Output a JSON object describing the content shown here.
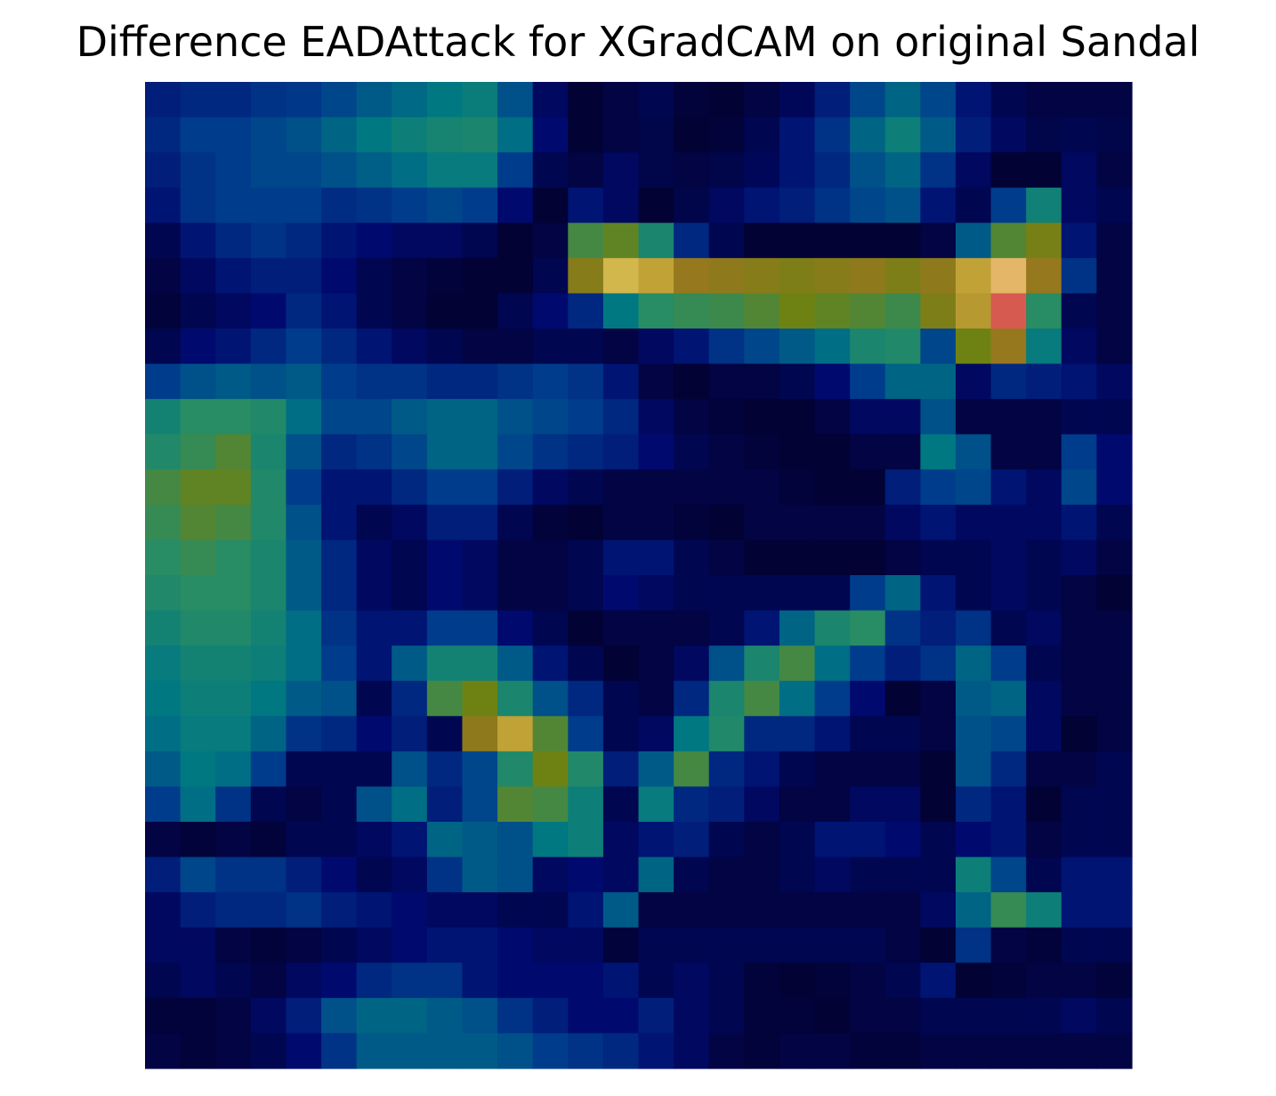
{
  "chart_data": {
    "type": "heatmap",
    "title": "Difference EADAttack for XGradCAM on original Sandal",
    "xlabel": "",
    "ylabel": "",
    "axes_visible": false,
    "grid": false,
    "colormap": "jet-like (dark blue low, cyan/green mid, yellow/orange/red high), overlaid on the original image",
    "rows": 28,
    "cols": 28,
    "values": [
      [
        0.12,
        0.14,
        0.14,
        0.16,
        0.17,
        0.2,
        0.24,
        0.27,
        0.3,
        0.33,
        0.22,
        0.06,
        0.0,
        0.02,
        0.04,
        0.01,
        0.0,
        0.02,
        0.05,
        0.12,
        0.2,
        0.26,
        0.2,
        0.1,
        0.04,
        0.02,
        0.02,
        0.02
      ],
      [
        0.14,
        0.18,
        0.18,
        0.2,
        0.22,
        0.26,
        0.3,
        0.34,
        0.37,
        0.38,
        0.28,
        0.08,
        0.0,
        0.02,
        0.03,
        0.0,
        0.01,
        0.04,
        0.1,
        0.16,
        0.26,
        0.34,
        0.24,
        0.12,
        0.06,
        0.03,
        0.04,
        0.03
      ],
      [
        0.12,
        0.16,
        0.18,
        0.2,
        0.2,
        0.22,
        0.25,
        0.28,
        0.32,
        0.32,
        0.18,
        0.04,
        0.02,
        0.06,
        0.03,
        0.02,
        0.03,
        0.05,
        0.1,
        0.14,
        0.22,
        0.26,
        0.16,
        0.06,
        0.0,
        0.0,
        0.06,
        0.02
      ],
      [
        0.1,
        0.16,
        0.18,
        0.18,
        0.18,
        0.15,
        0.16,
        0.18,
        0.2,
        0.18,
        0.08,
        0.0,
        0.1,
        0.06,
        0.0,
        0.03,
        0.06,
        0.1,
        0.12,
        0.16,
        0.2,
        0.22,
        0.1,
        0.04,
        0.18,
        0.35,
        0.06,
        0.04
      ],
      [
        0.04,
        0.1,
        0.14,
        0.16,
        0.14,
        0.1,
        0.08,
        0.06,
        0.06,
        0.04,
        0.0,
        0.02,
        0.46,
        0.5,
        0.38,
        0.14,
        0.04,
        0.0,
        0.0,
        0.0,
        0.0,
        0.0,
        0.02,
        0.24,
        0.48,
        0.54,
        0.1,
        0.02
      ],
      [
        0.02,
        0.06,
        0.1,
        0.12,
        0.12,
        0.08,
        0.04,
        0.02,
        0.01,
        0.0,
        0.0,
        0.04,
        0.58,
        0.78,
        0.72,
        0.62,
        0.6,
        0.58,
        0.56,
        0.58,
        0.6,
        0.56,
        0.6,
        0.72,
        0.88,
        0.62,
        0.16,
        0.02
      ],
      [
        0.01,
        0.04,
        0.06,
        0.08,
        0.14,
        0.1,
        0.04,
        0.02,
        0.0,
        0.0,
        0.04,
        0.08,
        0.14,
        0.3,
        0.42,
        0.44,
        0.45,
        0.48,
        0.52,
        0.5,
        0.48,
        0.45,
        0.56,
        0.7,
        0.95,
        0.42,
        0.04,
        0.02
      ],
      [
        0.04,
        0.08,
        0.1,
        0.14,
        0.18,
        0.14,
        0.1,
        0.06,
        0.04,
        0.02,
        0.02,
        0.04,
        0.04,
        0.02,
        0.06,
        0.1,
        0.16,
        0.2,
        0.24,
        0.28,
        0.38,
        0.4,
        0.2,
        0.52,
        0.62,
        0.32,
        0.06,
        0.02
      ],
      [
        0.18,
        0.22,
        0.24,
        0.22,
        0.24,
        0.18,
        0.16,
        0.16,
        0.14,
        0.14,
        0.16,
        0.18,
        0.16,
        0.1,
        0.02,
        0.0,
        0.02,
        0.02,
        0.04,
        0.08,
        0.18,
        0.26,
        0.26,
        0.06,
        0.14,
        0.12,
        0.1,
        0.06
      ],
      [
        0.36,
        0.42,
        0.42,
        0.4,
        0.28,
        0.2,
        0.2,
        0.24,
        0.26,
        0.26,
        0.22,
        0.2,
        0.18,
        0.14,
        0.06,
        0.02,
        0.01,
        0.0,
        0.0,
        0.02,
        0.06,
        0.06,
        0.22,
        0.02,
        0.02,
        0.02,
        0.04,
        0.04
      ],
      [
        0.4,
        0.44,
        0.48,
        0.38,
        0.22,
        0.14,
        0.16,
        0.2,
        0.26,
        0.26,
        0.2,
        0.16,
        0.14,
        0.12,
        0.08,
        0.04,
        0.02,
        0.01,
        0.0,
        0.0,
        0.02,
        0.02,
        0.3,
        0.22,
        0.02,
        0.02,
        0.18,
        0.08
      ],
      [
        0.46,
        0.5,
        0.5,
        0.4,
        0.18,
        0.1,
        0.1,
        0.14,
        0.18,
        0.18,
        0.12,
        0.06,
        0.04,
        0.02,
        0.02,
        0.02,
        0.02,
        0.02,
        0.01,
        0.0,
        0.0,
        0.12,
        0.18,
        0.2,
        0.1,
        0.06,
        0.2,
        0.08
      ],
      [
        0.44,
        0.48,
        0.46,
        0.4,
        0.22,
        0.1,
        0.04,
        0.06,
        0.12,
        0.12,
        0.04,
        0.01,
        0.0,
        0.02,
        0.02,
        0.01,
        0.0,
        0.02,
        0.02,
        0.02,
        0.02,
        0.06,
        0.1,
        0.06,
        0.06,
        0.06,
        0.1,
        0.04
      ],
      [
        0.42,
        0.44,
        0.42,
        0.38,
        0.24,
        0.14,
        0.06,
        0.04,
        0.08,
        0.06,
        0.02,
        0.02,
        0.04,
        0.1,
        0.1,
        0.04,
        0.02,
        0.0,
        0.0,
        0.0,
        0.0,
        0.02,
        0.04,
        0.04,
        0.06,
        0.04,
        0.06,
        0.02
      ],
      [
        0.4,
        0.42,
        0.42,
        0.38,
        0.24,
        0.14,
        0.06,
        0.04,
        0.08,
        0.06,
        0.02,
        0.02,
        0.04,
        0.08,
        0.06,
        0.04,
        0.04,
        0.04,
        0.04,
        0.04,
        0.18,
        0.26,
        0.1,
        0.04,
        0.06,
        0.04,
        0.02,
        0.0
      ],
      [
        0.36,
        0.4,
        0.4,
        0.36,
        0.28,
        0.16,
        0.1,
        0.1,
        0.18,
        0.18,
        0.08,
        0.04,
        0.0,
        0.02,
        0.02,
        0.02,
        0.04,
        0.1,
        0.26,
        0.38,
        0.42,
        0.16,
        0.12,
        0.16,
        0.04,
        0.06,
        0.02,
        0.02
      ],
      [
        0.32,
        0.36,
        0.36,
        0.34,
        0.28,
        0.18,
        0.1,
        0.24,
        0.36,
        0.36,
        0.24,
        0.1,
        0.04,
        0.0,
        0.02,
        0.06,
        0.22,
        0.38,
        0.46,
        0.28,
        0.18,
        0.12,
        0.16,
        0.26,
        0.18,
        0.04,
        0.02,
        0.02
      ],
      [
        0.3,
        0.34,
        0.34,
        0.3,
        0.24,
        0.22,
        0.04,
        0.14,
        0.46,
        0.52,
        0.38,
        0.22,
        0.14,
        0.04,
        0.02,
        0.14,
        0.38,
        0.46,
        0.28,
        0.18,
        0.08,
        0.0,
        0.02,
        0.24,
        0.26,
        0.06,
        0.02,
        0.02
      ],
      [
        0.28,
        0.32,
        0.32,
        0.26,
        0.16,
        0.14,
        0.08,
        0.12,
        0.04,
        0.6,
        0.72,
        0.48,
        0.18,
        0.04,
        0.06,
        0.3,
        0.4,
        0.14,
        0.14,
        0.1,
        0.04,
        0.04,
        0.02,
        0.22,
        0.2,
        0.06,
        0.0,
        0.02
      ],
      [
        0.24,
        0.3,
        0.28,
        0.18,
        0.04,
        0.04,
        0.04,
        0.22,
        0.14,
        0.2,
        0.4,
        0.52,
        0.4,
        0.12,
        0.24,
        0.46,
        0.14,
        0.1,
        0.04,
        0.02,
        0.02,
        0.02,
        0.0,
        0.22,
        0.14,
        0.02,
        0.02,
        0.04
      ],
      [
        0.18,
        0.28,
        0.16,
        0.04,
        0.02,
        0.04,
        0.22,
        0.28,
        0.12,
        0.2,
        0.48,
        0.46,
        0.34,
        0.04,
        0.32,
        0.14,
        0.12,
        0.06,
        0.02,
        0.02,
        0.06,
        0.06,
        0.0,
        0.14,
        0.1,
        0.0,
        0.04,
        0.04
      ],
      [
        0.02,
        0.01,
        0.02,
        0.01,
        0.04,
        0.04,
        0.06,
        0.1,
        0.26,
        0.24,
        0.22,
        0.3,
        0.34,
        0.06,
        0.1,
        0.12,
        0.04,
        0.02,
        0.04,
        0.1,
        0.1,
        0.08,
        0.04,
        0.08,
        0.1,
        0.02,
        0.04,
        0.04
      ],
      [
        0.12,
        0.2,
        0.16,
        0.16,
        0.12,
        0.08,
        0.04,
        0.06,
        0.16,
        0.24,
        0.22,
        0.06,
        0.08,
        0.06,
        0.26,
        0.04,
        0.02,
        0.02,
        0.04,
        0.06,
        0.04,
        0.04,
        0.04,
        0.34,
        0.2,
        0.04,
        0.1,
        0.1
      ],
      [
        0.06,
        0.12,
        0.14,
        0.14,
        0.16,
        0.12,
        0.1,
        0.08,
        0.06,
        0.06,
        0.04,
        0.04,
        0.1,
        0.24,
        0.02,
        0.02,
        0.02,
        0.02,
        0.02,
        0.02,
        0.02,
        0.02,
        0.06,
        0.26,
        0.44,
        0.34,
        0.1,
        0.1
      ],
      [
        0.06,
        0.06,
        0.02,
        0.01,
        0.02,
        0.04,
        0.06,
        0.08,
        0.1,
        0.1,
        0.08,
        0.06,
        0.06,
        0.01,
        0.04,
        0.04,
        0.04,
        0.04,
        0.04,
        0.04,
        0.04,
        0.02,
        0.0,
        0.16,
        0.02,
        0.01,
        0.04,
        0.04
      ],
      [
        0.04,
        0.06,
        0.04,
        0.02,
        0.06,
        0.08,
        0.14,
        0.16,
        0.16,
        0.1,
        0.08,
        0.08,
        0.08,
        0.1,
        0.04,
        0.06,
        0.04,
        0.01,
        0.0,
        0.01,
        0.02,
        0.04,
        0.1,
        0.0,
        0.01,
        0.02,
        0.02,
        0.01
      ],
      [
        0.01,
        0.01,
        0.02,
        0.06,
        0.12,
        0.22,
        0.26,
        0.26,
        0.24,
        0.22,
        0.16,
        0.12,
        0.08,
        0.08,
        0.12,
        0.06,
        0.04,
        0.01,
        0.01,
        0.0,
        0.02,
        0.02,
        0.04,
        0.04,
        0.04,
        0.04,
        0.06,
        0.04
      ],
      [
        0.02,
        0.01,
        0.02,
        0.04,
        0.08,
        0.16,
        0.24,
        0.24,
        0.24,
        0.24,
        0.22,
        0.18,
        0.16,
        0.14,
        0.1,
        0.06,
        0.02,
        0.01,
        0.02,
        0.02,
        0.01,
        0.01,
        0.02,
        0.02,
        0.02,
        0.02,
        0.02,
        0.02
      ]
    ]
  }
}
